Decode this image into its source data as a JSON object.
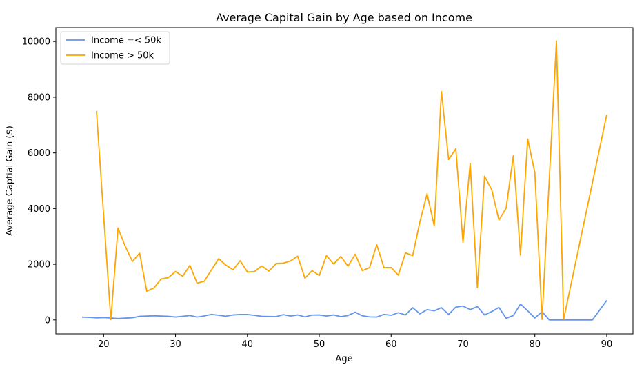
{
  "chart_data": {
    "type": "line",
    "title": "Average Capital Gain by Age based on Income",
    "xlabel": "Age",
    "ylabel": "Average Captial Gain ($)",
    "xlim": [
      13.35,
      93.65
    ],
    "ylim": [
      -500,
      10500
    ],
    "xticks": [
      20,
      30,
      40,
      50,
      60,
      70,
      80,
      90
    ],
    "yticks": [
      0,
      2000,
      4000,
      6000,
      8000,
      10000
    ],
    "grid": false,
    "legend_position": "top-left",
    "series": [
      {
        "name": "Income =< 50k",
        "color": "#6495ed",
        "points": [
          [
            17,
            100
          ],
          [
            18,
            95
          ],
          [
            19,
            75
          ],
          [
            20,
            85
          ],
          [
            21,
            70
          ],
          [
            22,
            50
          ],
          [
            23,
            65
          ],
          [
            24,
            80
          ],
          [
            25,
            130
          ],
          [
            26,
            140
          ],
          [
            27,
            150
          ],
          [
            28,
            140
          ],
          [
            29,
            130
          ],
          [
            30,
            105
          ],
          [
            31,
            130
          ],
          [
            32,
            160
          ],
          [
            33,
            105
          ],
          [
            34,
            145
          ],
          [
            35,
            200
          ],
          [
            36,
            170
          ],
          [
            37,
            135
          ],
          [
            38,
            180
          ],
          [
            39,
            195
          ],
          [
            40,
            195
          ],
          [
            41,
            165
          ],
          [
            42,
            130
          ],
          [
            43,
            125
          ],
          [
            44,
            120
          ],
          [
            45,
            190
          ],
          [
            46,
            140
          ],
          [
            47,
            180
          ],
          [
            48,
            110
          ],
          [
            49,
            175
          ],
          [
            50,
            180
          ],
          [
            51,
            140
          ],
          [
            52,
            180
          ],
          [
            53,
            120
          ],
          [
            54,
            160
          ],
          [
            55,
            280
          ],
          [
            56,
            150
          ],
          [
            57,
            110
          ],
          [
            58,
            105
          ],
          [
            59,
            200
          ],
          [
            60,
            170
          ],
          [
            61,
            260
          ],
          [
            62,
            180
          ],
          [
            63,
            440
          ],
          [
            64,
            220
          ],
          [
            65,
            370
          ],
          [
            66,
            330
          ],
          [
            67,
            440
          ],
          [
            68,
            200
          ],
          [
            69,
            460
          ],
          [
            70,
            500
          ],
          [
            71,
            370
          ],
          [
            72,
            480
          ],
          [
            73,
            180
          ],
          [
            74,
            300
          ],
          [
            75,
            450
          ],
          [
            76,
            60
          ],
          [
            77,
            160
          ],
          [
            78,
            570
          ],
          [
            79,
            330
          ],
          [
            80,
            70
          ],
          [
            81,
            300
          ],
          [
            82,
            0
          ],
          [
            83,
            0
          ],
          [
            84,
            0
          ],
          [
            85,
            0
          ],
          [
            86,
            0
          ],
          [
            87,
            0
          ],
          [
            88,
            0
          ],
          [
            90,
            700
          ]
        ]
      },
      {
        "name": "Income > 50k",
        "color": "#ffa500",
        "points": [
          [
            19,
            7500
          ],
          [
            21,
            10
          ],
          [
            22,
            3300
          ],
          [
            23,
            2650
          ],
          [
            24,
            2100
          ],
          [
            25,
            2400
          ],
          [
            26,
            1030
          ],
          [
            27,
            1150
          ],
          [
            28,
            1470
          ],
          [
            29,
            1520
          ],
          [
            30,
            1740
          ],
          [
            31,
            1570
          ],
          [
            32,
            1960
          ],
          [
            33,
            1320
          ],
          [
            34,
            1390
          ],
          [
            35,
            1800
          ],
          [
            36,
            2200
          ],
          [
            37,
            1970
          ],
          [
            38,
            1800
          ],
          [
            39,
            2130
          ],
          [
            40,
            1720
          ],
          [
            41,
            1740
          ],
          [
            42,
            1940
          ],
          [
            43,
            1750
          ],
          [
            44,
            2030
          ],
          [
            45,
            2040
          ],
          [
            46,
            2120
          ],
          [
            47,
            2290
          ],
          [
            48,
            1500
          ],
          [
            49,
            1770
          ],
          [
            50,
            1600
          ],
          [
            51,
            2310
          ],
          [
            52,
            2010
          ],
          [
            53,
            2280
          ],
          [
            54,
            1930
          ],
          [
            55,
            2360
          ],
          [
            56,
            1770
          ],
          [
            57,
            1880
          ],
          [
            58,
            2700
          ],
          [
            59,
            1880
          ],
          [
            60,
            1880
          ],
          [
            61,
            1610
          ],
          [
            62,
            2410
          ],
          [
            63,
            2310
          ],
          [
            64,
            3520
          ],
          [
            65,
            4530
          ],
          [
            66,
            3380
          ],
          [
            67,
            8200
          ],
          [
            68,
            5760
          ],
          [
            69,
            6150
          ],
          [
            70,
            2790
          ],
          [
            71,
            5620
          ],
          [
            72,
            1160
          ],
          [
            73,
            5160
          ],
          [
            74,
            4680
          ],
          [
            75,
            3590
          ],
          [
            76,
            4010
          ],
          [
            77,
            5900
          ],
          [
            78,
            2330
          ],
          [
            79,
            6500
          ],
          [
            80,
            5290
          ],
          [
            81,
            20
          ],
          [
            83,
            10020
          ],
          [
            84,
            20
          ],
          [
            90,
            7370
          ]
        ]
      }
    ]
  }
}
